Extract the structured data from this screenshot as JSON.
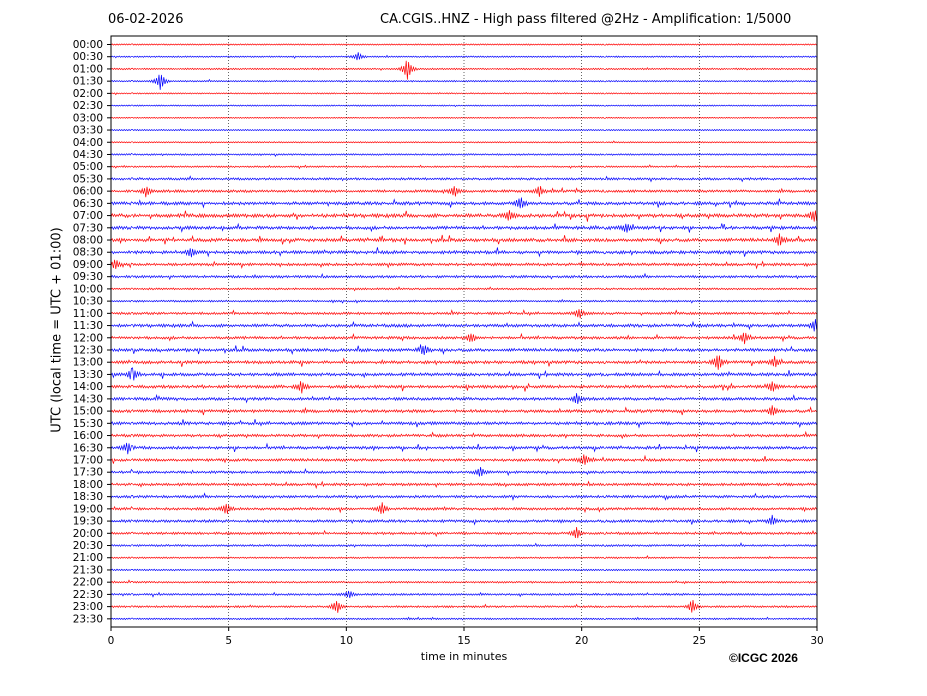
{
  "header": {
    "date": "06-02-2026",
    "title": "CA.CGIS..HNZ - High pass filtered @2Hz - Amplification: 1/5000"
  },
  "footer": {
    "copyright": "©ICGC 2026"
  },
  "colors": {
    "trace_odd": "#ff0000",
    "trace_even": "#0000ff",
    "grid": "#000000"
  },
  "chart_data": {
    "type": "line",
    "xlabel": "time in minutes",
    "ylabel": "UTC (local time = UTC + 01:00)",
    "xlim": [
      0,
      30
    ],
    "x_ticks": [
      0,
      5,
      10,
      15,
      20,
      25,
      30
    ],
    "vertical_gridlines": [
      5,
      10,
      15,
      20,
      25
    ],
    "grid": "dotted vertical",
    "row_labels": [
      "00:00",
      "00:30",
      "01:00",
      "01:30",
      "02:00",
      "02:30",
      "03:00",
      "03:30",
      "04:00",
      "04:30",
      "05:00",
      "05:30",
      "06:00",
      "06:30",
      "07:00",
      "07:30",
      "08:00",
      "08:30",
      "09:00",
      "09:30",
      "10:00",
      "10:30",
      "11:00",
      "11:30",
      "12:00",
      "12:30",
      "13:00",
      "13:30",
      "14:00",
      "14:30",
      "15:00",
      "15:30",
      "16:00",
      "16:30",
      "17:00",
      "17:30",
      "18:00",
      "18:30",
      "19:00",
      "19:30",
      "20:00",
      "20:30",
      "21:00",
      "21:30",
      "22:00",
      "22:30",
      "23:00",
      "23:30"
    ],
    "row_activity": [
      0.15,
      0.2,
      0.2,
      0.2,
      0.15,
      0.15,
      0.1,
      0.1,
      0.15,
      0.25,
      0.25,
      0.45,
      0.55,
      0.75,
      0.9,
      0.75,
      0.8,
      0.75,
      0.6,
      0.5,
      0.3,
      0.3,
      0.5,
      0.7,
      0.6,
      0.7,
      0.7,
      0.7,
      0.7,
      0.65,
      0.7,
      0.7,
      0.6,
      0.65,
      0.6,
      0.5,
      0.55,
      0.55,
      0.55,
      0.6,
      0.5,
      0.35,
      0.25,
      0.2,
      0.3,
      0.35,
      0.35,
      0.25
    ],
    "events": [
      {
        "row": "00:30",
        "minute": 10.5,
        "amp": 0.35
      },
      {
        "row": "01:00",
        "minute": 12.6,
        "amp": 1.0
      },
      {
        "row": "01:30",
        "minute": 2.1,
        "amp": 0.8
      },
      {
        "row": "06:00",
        "minute": 1.5,
        "amp": 0.5
      },
      {
        "row": "06:00",
        "minute": 14.6,
        "amp": 0.5
      },
      {
        "row": "06:00",
        "minute": 18.2,
        "amp": 0.5
      },
      {
        "row": "06:30",
        "minute": 17.4,
        "amp": 0.55
      },
      {
        "row": "07:00",
        "minute": 16.9,
        "amp": 0.5
      },
      {
        "row": "07:00",
        "minute": 29.9,
        "amp": 0.6
      },
      {
        "row": "07:30",
        "minute": 21.9,
        "amp": 0.5
      },
      {
        "row": "08:00",
        "minute": 28.4,
        "amp": 0.5
      },
      {
        "row": "08:30",
        "minute": 3.4,
        "amp": 0.45
      },
      {
        "row": "09:00",
        "minute": 0.2,
        "amp": 0.45
      },
      {
        "row": "11:00",
        "minute": 19.9,
        "amp": 0.45
      },
      {
        "row": "11:30",
        "minute": 29.9,
        "amp": 0.5
      },
      {
        "row": "12:00",
        "minute": 15.3,
        "amp": 0.45
      },
      {
        "row": "12:00",
        "minute": 26.9,
        "amp": 0.5
      },
      {
        "row": "12:30",
        "minute": 13.3,
        "amp": 0.5
      },
      {
        "row": "13:00",
        "minute": 25.8,
        "amp": 0.7
      },
      {
        "row": "13:00",
        "minute": 28.2,
        "amp": 0.5
      },
      {
        "row": "13:30",
        "minute": 0.9,
        "amp": 0.7
      },
      {
        "row": "14:00",
        "minute": 8.1,
        "amp": 0.45
      },
      {
        "row": "14:00",
        "minute": 28.1,
        "amp": 0.5
      },
      {
        "row": "14:30",
        "minute": 19.8,
        "amp": 0.5
      },
      {
        "row": "15:00",
        "minute": 28.1,
        "amp": 0.45
      },
      {
        "row": "16:30",
        "minute": 0.7,
        "amp": 0.5
      },
      {
        "row": "17:00",
        "minute": 20.1,
        "amp": 0.55
      },
      {
        "row": "17:30",
        "minute": 15.7,
        "amp": 0.45
      },
      {
        "row": "19:00",
        "minute": 4.9,
        "amp": 0.5
      },
      {
        "row": "19:00",
        "minute": 11.5,
        "amp": 0.55
      },
      {
        "row": "19:30",
        "minute": 28.1,
        "amp": 0.5
      },
      {
        "row": "20:00",
        "minute": 19.8,
        "amp": 0.5
      },
      {
        "row": "22:30",
        "minute": 10.1,
        "amp": 0.35
      },
      {
        "row": "23:00",
        "minute": 9.6,
        "amp": 0.6
      },
      {
        "row": "23:00",
        "minute": 24.7,
        "amp": 0.6
      }
    ]
  }
}
